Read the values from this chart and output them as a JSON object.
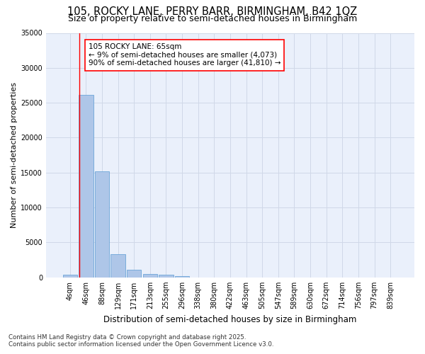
{
  "title1": "105, ROCKY LANE, PERRY BARR, BIRMINGHAM, B42 1QZ",
  "title2": "Size of property relative to semi-detached houses in Birmingham",
  "xlabel": "Distribution of semi-detached houses by size in Birmingham",
  "ylabel": "Number of semi-detached properties",
  "categories": [
    "4sqm",
    "46sqm",
    "88sqm",
    "129sqm",
    "171sqm",
    "213sqm",
    "255sqm",
    "296sqm",
    "338sqm",
    "380sqm",
    "422sqm",
    "463sqm",
    "505sqm",
    "547sqm",
    "589sqm",
    "630sqm",
    "672sqm",
    "714sqm",
    "756sqm",
    "797sqm",
    "839sqm"
  ],
  "bar_heights": [
    400,
    26100,
    15200,
    3350,
    1100,
    500,
    350,
    150,
    0,
    0,
    0,
    0,
    0,
    0,
    0,
    0,
    0,
    0,
    0,
    0,
    0
  ],
  "bar_color": "#aec6e8",
  "bar_edge_color": "#5a9bd4",
  "grid_color": "#d0d8e8",
  "background_color": "#eaf0fb",
  "vline_x": 0.58,
  "vline_color": "red",
  "annotation_box_text": "105 ROCKY LANE: 65sqm\n← 9% of semi-detached houses are smaller (4,073)\n90% of semi-detached houses are larger (41,810) →",
  "ylim": [
    0,
    35000
  ],
  "yticks": [
    0,
    5000,
    10000,
    15000,
    20000,
    25000,
    30000,
    35000
  ],
  "footer": "Contains HM Land Registry data © Crown copyright and database right 2025.\nContains public sector information licensed under the Open Government Licence v3.0.",
  "title_fontsize": 10.5,
  "subtitle_fontsize": 9,
  "tick_fontsize": 7,
  "ylabel_fontsize": 8,
  "xlabel_fontsize": 8.5,
  "annot_fontsize": 7.5
}
